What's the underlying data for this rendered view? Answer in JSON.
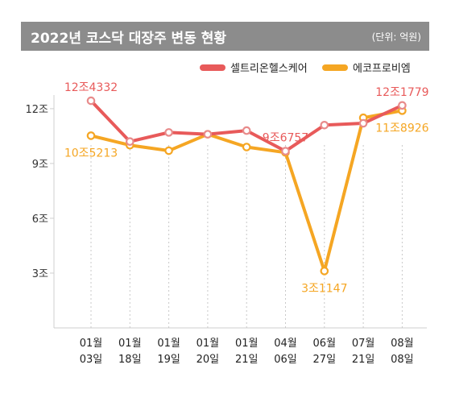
{
  "chart_data": {
    "type": "line",
    "title": "2022년 코스닥 대장주 변동 현황",
    "unit": "(단위: 억원)",
    "categories": [
      [
        "01월",
        "03일"
      ],
      [
        "01월",
        "18일"
      ],
      [
        "01월",
        "19일"
      ],
      [
        "01월",
        "20일"
      ],
      [
        "01월",
        "21일"
      ],
      [
        "04월",
        "06일"
      ],
      [
        "06월",
        "27일"
      ],
      [
        "07월",
        "21일"
      ],
      [
        "08월",
        "08일"
      ]
    ],
    "y_ticks": [
      {
        "value": 3,
        "label": "3조"
      },
      {
        "value": 6,
        "label": "6조"
      },
      {
        "value": 9,
        "label": "9조"
      },
      {
        "value": 12,
        "label": "12조"
      }
    ],
    "ylim": [
      0,
      14.2
    ],
    "series": [
      {
        "name": "셀트리온헬스케어",
        "color": "#e85a5a",
        "values": [
          12.4332,
          10.2,
          10.7,
          10.6,
          10.8,
          9.6757,
          11.1,
          11.2,
          12.1779
        ]
      },
      {
        "name": "에코프로비엠",
        "color": "#f5a623",
        "values": [
          10.5213,
          10.0,
          9.7,
          10.6,
          9.9,
          9.6,
          3.1147,
          11.5,
          11.8926
        ]
      }
    ],
    "annotations": [
      {
        "series": 0,
        "index": 0,
        "text": "12조4332",
        "pos": "above"
      },
      {
        "series": 1,
        "index": 0,
        "text": "10조5213",
        "pos": "below"
      },
      {
        "series": 0,
        "index": 5,
        "text": "9조6757",
        "pos": "above"
      },
      {
        "series": 1,
        "index": 6,
        "text": "3조1147",
        "pos": "below"
      },
      {
        "series": 0,
        "index": 8,
        "text": "12조1779",
        "pos": "above"
      },
      {
        "series": 1,
        "index": 8,
        "text": "11조8926",
        "pos": "below"
      }
    ]
  }
}
